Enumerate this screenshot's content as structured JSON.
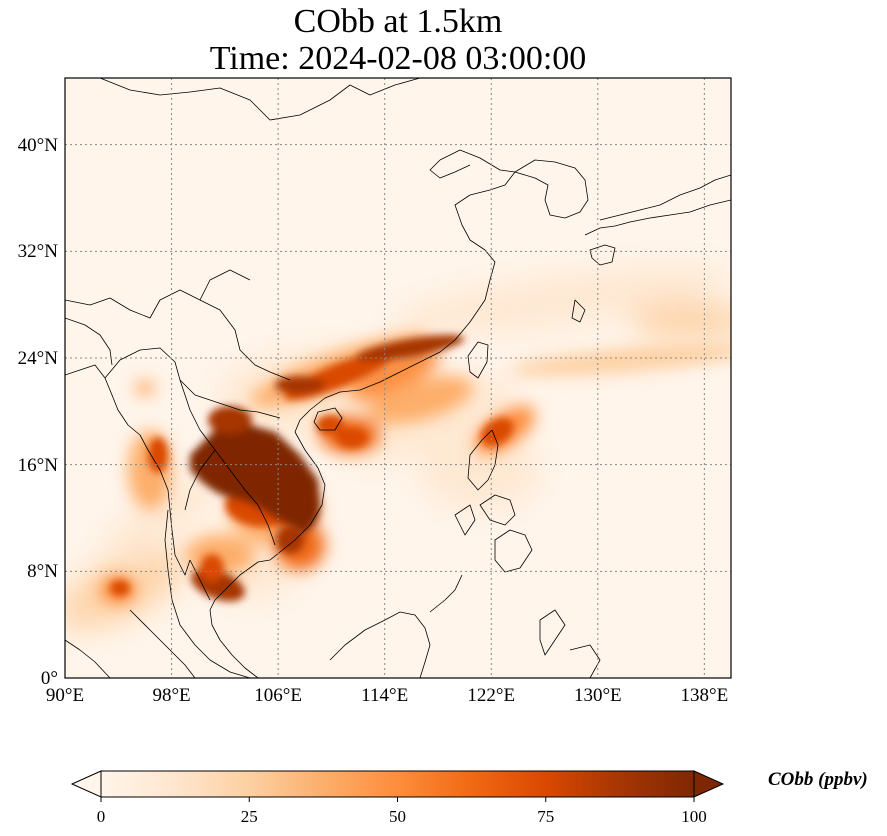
{
  "title": "CObb at 1.5km",
  "subtitle": "Time: 2024-02-08 03:00:00",
  "map": {
    "x_ticks": [
      "90°E",
      "98°E",
      "106°E",
      "114°E",
      "122°E",
      "130°E",
      "138°E"
    ],
    "y_ticks": [
      "0°",
      "8°N",
      "16°N",
      "24°N",
      "32°N",
      "40°N"
    ],
    "lon_range": [
      90,
      140
    ],
    "lat_range": [
      0,
      45
    ]
  },
  "colorbar": {
    "label": "CObb (ppbv)",
    "ticks": [
      "0",
      "25",
      "50",
      "75",
      "100"
    ],
    "range": [
      0,
      100
    ],
    "extend": "both",
    "colormap": [
      "#fff5eb",
      "#fee6ce",
      "#fdd0a2",
      "#fdae6b",
      "#fd8d3c",
      "#f16913",
      "#d94801",
      "#a63603",
      "#7f2704"
    ]
  },
  "colors": {
    "background": "#fff5eb",
    "coastline": "#000000",
    "gridline": "#888888",
    "peak": "#7f2704"
  }
}
